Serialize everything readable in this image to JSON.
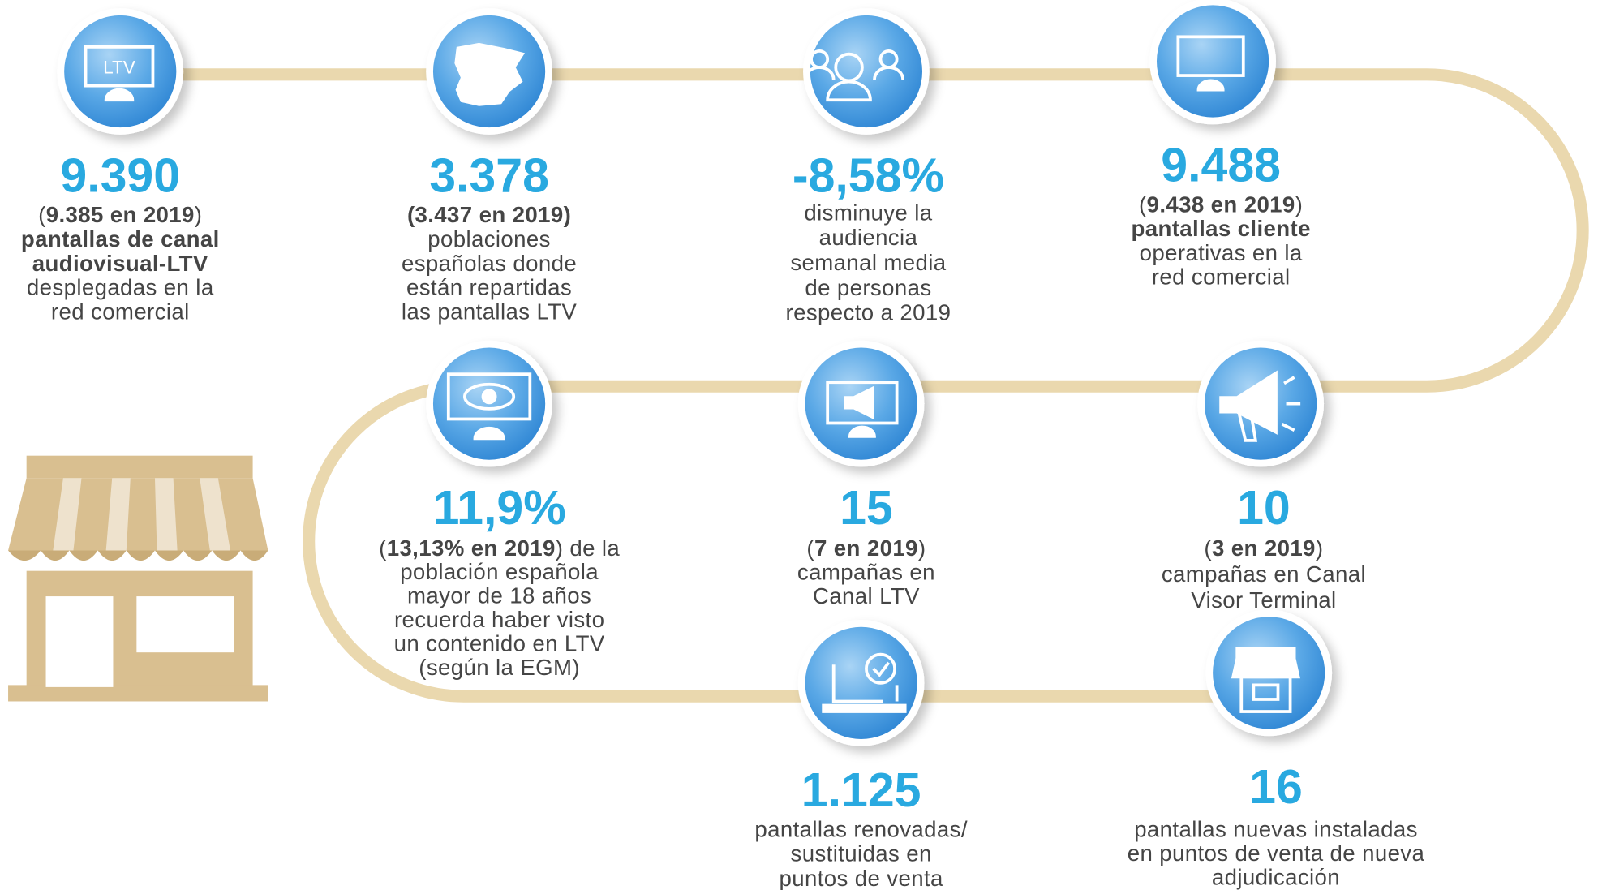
{
  "items": [
    {
      "number": "9.390",
      "icon_label": "LTV",
      "lines": [
        [
          {
            "text": "("
          },
          {
            "text": "9.385 en 2019",
            "bold": true
          },
          {
            "text": ")"
          }
        ],
        [
          {
            "text": "pantallas de canal",
            "bold": true
          }
        ],
        [
          {
            "text": "audiovisual-LTV",
            "bold": true
          }
        ],
        [
          {
            "text": "desplegadas en la"
          }
        ],
        [
          {
            "text": "red comercial"
          }
        ]
      ]
    },
    {
      "number": "3.378",
      "lines": [
        [
          {
            "text": "(3.437 en 2019)",
            "bold": true
          }
        ],
        [
          {
            "text": "poblaciones"
          }
        ],
        [
          {
            "text": "españolas donde"
          }
        ],
        [
          {
            "text": "están repartidas"
          }
        ],
        [
          {
            "text": "las pantallas LTV"
          }
        ]
      ]
    },
    {
      "number": "-8,58%",
      "lines": [
        [
          {
            "text": "disminuye la"
          }
        ],
        [
          {
            "text": "audiencia"
          }
        ],
        [
          {
            "text": "semanal media"
          }
        ],
        [
          {
            "text": "de personas"
          }
        ],
        [
          {
            "text": "respecto a 2019"
          }
        ]
      ]
    },
    {
      "number": "9.488",
      "lines": [
        [
          {
            "text": "("
          },
          {
            "text": "9.438 en 2019",
            "bold": true
          },
          {
            "text": ")"
          }
        ],
        [
          {
            "text": "pantallas cliente",
            "bold": true
          }
        ],
        [
          {
            "text": "operativas en la"
          }
        ],
        [
          {
            "text": "red comercial"
          }
        ]
      ]
    },
    {
      "number": "11,9%",
      "lines": [
        [
          {
            "text": "("
          },
          {
            "text": "13,13% en 2019",
            "bold": true
          },
          {
            "text": ") de la"
          }
        ],
        [
          {
            "text": "población española"
          }
        ],
        [
          {
            "text": "mayor de 18 años"
          }
        ],
        [
          {
            "text": "recuerda haber visto"
          }
        ],
        [
          {
            "text": "un contenido en LTV"
          }
        ],
        [
          {
            "text": "(según la EGM)"
          }
        ]
      ]
    },
    {
      "number": "15",
      "lines": [
        [
          {
            "text": "("
          },
          {
            "text": "7 en 2019",
            "bold": true
          },
          {
            "text": ")"
          }
        ],
        [
          {
            "text": "campañas en"
          }
        ],
        [
          {
            "text": "Canal LTV"
          }
        ]
      ]
    },
    {
      "number": "10",
      "lines": [
        [
          {
            "text": "("
          },
          {
            "text": "3 en 2019",
            "bold": true
          },
          {
            "text": ")"
          }
        ],
        [
          {
            "text": "campañas en Canal"
          }
        ],
        [
          {
            "text": "Visor Terminal"
          }
        ]
      ]
    },
    {
      "number": "1.125",
      "lines": [
        [
          {
            "text": "pantallas renovadas/"
          }
        ],
        [
          {
            "text": "sustituidas en"
          }
        ],
        [
          {
            "text": "puntos de venta"
          }
        ]
      ]
    },
    {
      "number": "16",
      "lines": [
        [
          {
            "text": "pantallas nuevas instaladas"
          }
        ],
        [
          {
            "text": "en puntos de venta de nueva"
          }
        ],
        [
          {
            "text": "adjudicación"
          }
        ]
      ]
    }
  ]
}
